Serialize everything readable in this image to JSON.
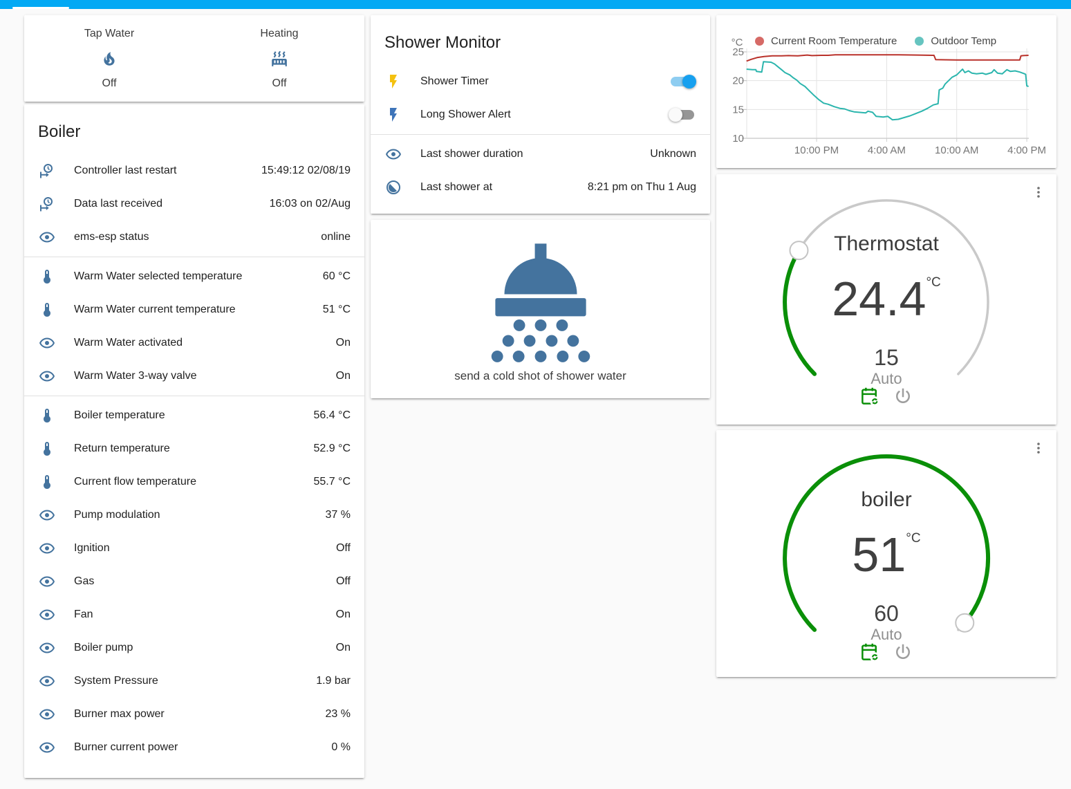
{
  "header": {
    "bar_color": "#03a9f4"
  },
  "glance_card": {
    "entities": [
      {
        "label": "Tap Water",
        "icon": "fire-icon",
        "state": "Off"
      },
      {
        "label": "Heating",
        "icon": "radiator-icon",
        "state": "Off"
      }
    ]
  },
  "boiler_card": {
    "title": "Boiler",
    "sections": [
      [
        {
          "icon": "clock-start-icon",
          "label": "Controller last restart",
          "value": "15:49:12 02/08/19"
        },
        {
          "icon": "clock-start-icon",
          "label": "Data last received",
          "value": "16:03 on 02/Aug"
        },
        {
          "icon": "eye-icon",
          "label": "ems-esp status",
          "value": "online"
        }
      ],
      [
        {
          "icon": "thermometer-icon",
          "label": "Warm Water selected temperature",
          "value": "60 °C"
        },
        {
          "icon": "thermometer-icon",
          "label": "Warm Water current temperature",
          "value": "51 °C"
        },
        {
          "icon": "eye-icon",
          "label": "Warm Water activated",
          "value": "On"
        },
        {
          "icon": "eye-icon",
          "label": "Warm Water 3-way valve",
          "value": "On"
        }
      ],
      [
        {
          "icon": "thermometer-icon",
          "label": "Boiler temperature",
          "value": "56.4 °C"
        },
        {
          "icon": "thermometer-icon",
          "label": "Return temperature",
          "value": "52.9 °C"
        },
        {
          "icon": "thermometer-icon",
          "label": "Current flow temperature",
          "value": "55.7 °C"
        },
        {
          "icon": "eye-icon",
          "label": "Pump modulation",
          "value": "37 %"
        },
        {
          "icon": "eye-icon",
          "label": "Ignition",
          "value": "Off"
        },
        {
          "icon": "eye-icon",
          "label": "Gas",
          "value": "Off"
        },
        {
          "icon": "eye-icon",
          "label": "Fan",
          "value": "On"
        },
        {
          "icon": "eye-icon",
          "label": "Boiler pump",
          "value": "On"
        },
        {
          "icon": "eye-icon",
          "label": "System Pressure",
          "value": "1.9 bar"
        },
        {
          "icon": "eye-icon",
          "label": "Burner max power",
          "value": "23 %"
        },
        {
          "icon": "eye-icon",
          "label": "Burner current power",
          "value": "0 %"
        }
      ]
    ]
  },
  "shower_monitor_card": {
    "title": "Shower Monitor",
    "switches": [
      {
        "icon": "flash-icon",
        "icon_color": "#f4c10f",
        "label": "Shower Timer",
        "on": true
      },
      {
        "icon": "flash-icon",
        "icon_color": "#3e74b9",
        "label": "Long Shower Alert",
        "on": false
      }
    ],
    "rows": [
      {
        "icon": "eye-icon",
        "label": "Last shower duration",
        "value": "Unknown"
      },
      {
        "icon": "clock-time-icon",
        "label": "Last shower at",
        "value": "8:21 pm on Thu 1 Aug"
      }
    ]
  },
  "shower_action_card": {
    "label": "send a cold shot of shower water"
  },
  "chart_data": {
    "type": "line",
    "unit": "°C",
    "y_ticks": [
      25,
      20,
      15,
      10
    ],
    "y_range": [
      10,
      25.6
    ],
    "x_range_hours": [
      0,
      24.2
    ],
    "x_ticks": [
      {
        "t": 6,
        "label": "10:00 PM"
      },
      {
        "t": 12,
        "label": "4:00 AM"
      },
      {
        "t": 18,
        "label": "10:00 AM"
      },
      {
        "t": 24,
        "label": "4:00 PM"
      }
    ],
    "grid": true,
    "legend_position": "top",
    "series": [
      {
        "name": "Current Room Temperature",
        "color": "#b9312a",
        "dot_color": "#d66a66",
        "points": [
          [
            0,
            23.4
          ],
          [
            0.4,
            23.7
          ],
          [
            0.9,
            24.0
          ],
          [
            1.5,
            24.2
          ],
          [
            2.2,
            24.3
          ],
          [
            3.0,
            24.3
          ],
          [
            3.6,
            24.35
          ],
          [
            4.4,
            24.3
          ],
          [
            5.2,
            24.45
          ],
          [
            5.6,
            24.35
          ],
          [
            6.4,
            24.4
          ],
          [
            7.0,
            24.4
          ],
          [
            7.6,
            24.5
          ],
          [
            9.0,
            24.5
          ],
          [
            11.0,
            24.5
          ],
          [
            13.0,
            24.5
          ],
          [
            14.6,
            24.45
          ],
          [
            15.9,
            24.4
          ],
          [
            16.05,
            24.4
          ],
          [
            16.2,
            23.65
          ],
          [
            18.0,
            23.6
          ],
          [
            20.0,
            23.6
          ],
          [
            22.0,
            23.6
          ],
          [
            23.4,
            23.6
          ],
          [
            23.5,
            24.3
          ],
          [
            23.7,
            24.35
          ],
          [
            24.15,
            24.4
          ]
        ]
      },
      {
        "name": "Outdoor Temp",
        "color": "#2bb5ad",
        "dot_color": "#66c4c0",
        "points": [
          [
            0,
            22.0
          ],
          [
            0.5,
            21.9
          ],
          [
            0.8,
            21.9
          ],
          [
            0.85,
            21.6
          ],
          [
            1.3,
            21.5
          ],
          [
            1.45,
            23.3
          ],
          [
            2.1,
            23.2
          ],
          [
            2.4,
            22.9
          ],
          [
            2.7,
            22.4
          ],
          [
            3.0,
            21.9
          ],
          [
            3.3,
            21.4
          ],
          [
            3.7,
            21.0
          ],
          [
            4.0,
            20.5
          ],
          [
            4.3,
            20.1
          ],
          [
            4.6,
            19.5
          ],
          [
            5.0,
            19.0
          ],
          [
            5.4,
            18.2
          ],
          [
            5.8,
            17.4
          ],
          [
            6.2,
            16.7
          ],
          [
            6.6,
            16.1
          ],
          [
            7.0,
            15.9
          ],
          [
            7.5,
            15.5
          ],
          [
            8.0,
            15.2
          ],
          [
            8.4,
            15.1
          ],
          [
            8.8,
            14.8
          ],
          [
            9.2,
            14.6
          ],
          [
            9.7,
            14.5
          ],
          [
            10.2,
            14.4
          ],
          [
            10.4,
            14.7
          ],
          [
            10.8,
            14.5
          ],
          [
            11.1,
            13.8
          ],
          [
            11.7,
            13.7
          ],
          [
            12.1,
            13.8
          ],
          [
            12.5,
            13.2
          ],
          [
            13.0,
            13.3
          ],
          [
            13.5,
            13.6
          ],
          [
            14.0,
            13.9
          ],
          [
            14.5,
            14.3
          ],
          [
            15.0,
            14.7
          ],
          [
            15.5,
            15.2
          ],
          [
            16.0,
            15.8
          ],
          [
            16.4,
            16.0
          ],
          [
            16.5,
            18.4
          ],
          [
            16.8,
            18.7
          ],
          [
            17.0,
            19.4
          ],
          [
            17.3,
            20.0
          ],
          [
            17.6,
            20.6
          ],
          [
            18.0,
            21.0
          ],
          [
            18.3,
            21.6
          ],
          [
            18.5,
            22.0
          ],
          [
            18.7,
            21.4
          ],
          [
            19.0,
            21.7
          ],
          [
            19.3,
            21.3
          ],
          [
            19.7,
            21.2
          ],
          [
            20.2,
            21.3
          ],
          [
            20.5,
            21.1
          ],
          [
            21.0,
            21.4
          ],
          [
            21.2,
            21.9
          ],
          [
            21.5,
            21.3
          ],
          [
            21.9,
            21.2
          ],
          [
            22.3,
            21.9
          ],
          [
            22.6,
            21.6
          ],
          [
            23.0,
            21.7
          ],
          [
            23.4,
            21.5
          ],
          [
            23.8,
            21.2
          ],
          [
            23.9,
            21.1
          ],
          [
            24.0,
            19.1
          ],
          [
            24.15,
            19.0
          ]
        ]
      }
    ]
  },
  "thermostat_card": {
    "title": "Thermostat",
    "value": "24.4",
    "unit": "°C",
    "target": "15",
    "mode": "Auto",
    "progress": 0.28,
    "arc_color": "#0a8f08"
  },
  "boiler_gauge_card": {
    "title": "boiler",
    "value": "51",
    "unit": "°C",
    "target": "60",
    "mode": "Auto",
    "progress": 0.98,
    "arc_color": "#0a8f08"
  },
  "colors": {
    "header_accent": "#03a9f4",
    "entity_icon": "#44739e",
    "toggle_on": "#17a0ef",
    "gauge_green": "#0a8f08"
  }
}
